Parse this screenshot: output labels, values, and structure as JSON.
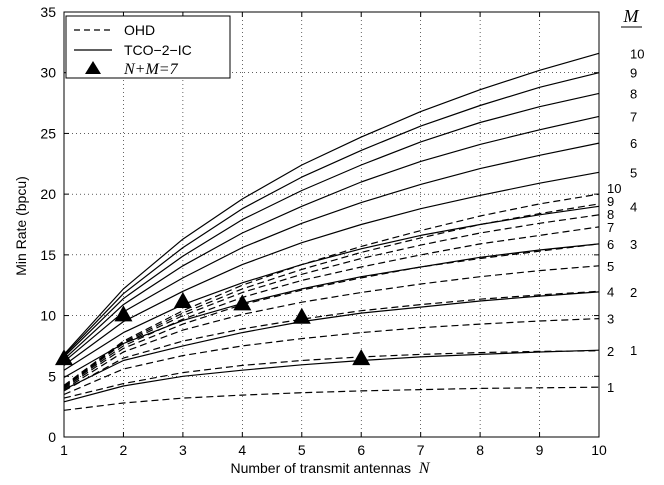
{
  "chart_data": {
    "type": "line",
    "xlabel": "Number of transmit antennas",
    "xlabel_var": "N",
    "ylabel": "Min Rate (bpcu)",
    "xlim": [
      1,
      10
    ],
    "ylim": [
      0,
      35
    ],
    "xticks": [
      1,
      2,
      3,
      4,
      5,
      6,
      7,
      8,
      9,
      10
    ],
    "yticks": [
      0,
      5,
      10,
      15,
      20,
      25,
      30,
      35
    ],
    "grid": true,
    "legend_position": "top-left",
    "legend": [
      {
        "label": "OHD",
        "style": "dashed"
      },
      {
        "label": "TCO−2−IC",
        "style": "solid"
      },
      {
        "label": "N+M=7",
        "style": "triangle-marker"
      }
    ],
    "right_axis_header": "M",
    "x": [
      1,
      2,
      3,
      4,
      5,
      6,
      7,
      8,
      9,
      10
    ],
    "series": [
      {
        "name": "OHD M=1",
        "style": "dashed",
        "m_label": "1",
        "values": [
          2.2,
          2.8,
          3.2,
          3.45,
          3.65,
          3.8,
          3.9,
          4.0,
          4.05,
          4.1
        ]
      },
      {
        "name": "OHD M=2",
        "style": "dashed",
        "m_label": "2",
        "values": [
          3.2,
          4.4,
          5.3,
          5.9,
          6.3,
          6.6,
          6.8,
          6.95,
          7.05,
          7.1
        ]
      },
      {
        "name": "OHD M=3",
        "style": "dashed",
        "m_label": "3",
        "values": [
          3.5,
          5.6,
          6.7,
          7.5,
          8.1,
          8.6,
          9.0,
          9.3,
          9.55,
          9.75
        ]
      },
      {
        "name": "OHD M=4",
        "style": "dashed",
        "m_label": "4",
        "values": [
          3.8,
          6.5,
          7.9,
          8.9,
          9.7,
          10.4,
          10.9,
          11.35,
          11.7,
          12.0
        ]
      },
      {
        "name": "OHD M=5",
        "style": "dashed",
        "m_label": "5",
        "values": [
          3.9,
          7.0,
          8.8,
          10.1,
          11.1,
          11.9,
          12.6,
          13.2,
          13.7,
          14.1
        ]
      },
      {
        "name": "OHD M=6",
        "style": "dashed",
        "m_label": "6",
        "values": [
          4.0,
          7.3,
          9.3,
          10.9,
          12.1,
          13.1,
          14.0,
          14.7,
          15.3,
          15.9
        ]
      },
      {
        "name": "OHD M=7",
        "style": "dashed",
        "m_label": "7",
        "values": [
          4.1,
          7.5,
          9.7,
          11.5,
          12.9,
          14.0,
          15.0,
          15.9,
          16.6,
          17.3
        ]
      },
      {
        "name": "OHD M=8",
        "style": "dashed",
        "m_label": "8",
        "values": [
          4.15,
          7.7,
          10.0,
          11.9,
          13.4,
          14.7,
          15.8,
          16.8,
          17.6,
          18.3
        ]
      },
      {
        "name": "OHD M=9",
        "style": "dashed",
        "m_label": "9",
        "values": [
          4.2,
          7.8,
          10.2,
          12.2,
          13.8,
          15.2,
          16.4,
          17.5,
          18.4,
          19.2
        ]
      },
      {
        "name": "OHD M=10",
        "style": "dashed",
        "m_label": "10",
        "values": [
          4.25,
          7.9,
          10.4,
          12.5,
          14.2,
          15.7,
          17.0,
          18.2,
          19.2,
          20.0
        ]
      },
      {
        "name": "TCO-2-IC M=1",
        "style": "solid",
        "m_label": "1",
        "values": [
          2.9,
          4.2,
          5.0,
          5.5,
          5.95,
          6.3,
          6.6,
          6.8,
          7.0,
          7.15
        ]
      },
      {
        "name": "TCO-2-IC M=2",
        "style": "solid",
        "m_label": "2",
        "values": [
          3.9,
          6.3,
          7.5,
          8.6,
          9.5,
          10.2,
          10.7,
          11.2,
          11.6,
          11.95
        ]
      },
      {
        "name": "TCO-2-IC M=3",
        "style": "solid",
        "m_label": "3",
        "values": [
          4.9,
          7.7,
          9.6,
          11.0,
          12.2,
          13.2,
          14.0,
          14.8,
          15.4,
          15.9
        ]
      },
      {
        "name": "TCO-2-IC M=4",
        "style": "solid",
        "m_label": "4",
        "values": [
          5.5,
          8.6,
          10.9,
          12.7,
          14.2,
          15.5,
          16.6,
          17.5,
          18.3,
          19.0
        ]
      },
      {
        "name": "TCO-2-IC M=5",
        "style": "solid",
        "m_label": "5",
        "values": [
          5.9,
          9.5,
          12.0,
          14.2,
          16.0,
          17.5,
          18.8,
          19.9,
          20.9,
          21.8
        ]
      },
      {
        "name": "TCO-2-IC M=6",
        "style": "solid",
        "m_label": "6",
        "values": [
          6.2,
          10.3,
          13.1,
          15.6,
          17.6,
          19.3,
          20.8,
          22.1,
          23.2,
          24.2
        ]
      },
      {
        "name": "TCO-2-IC M=7",
        "style": "solid",
        "m_label": "7",
        "values": [
          6.4,
          10.9,
          14.1,
          16.8,
          19.0,
          21.0,
          22.7,
          24.1,
          25.3,
          26.4
        ]
      },
      {
        "name": "TCO-2-IC M=8",
        "style": "solid",
        "m_label": "8",
        "values": [
          6.6,
          11.4,
          14.9,
          17.9,
          20.3,
          22.4,
          24.3,
          25.9,
          27.2,
          28.3
        ]
      },
      {
        "name": "TCO-2-IC M=9",
        "style": "solid",
        "m_label": "9",
        "values": [
          6.7,
          11.8,
          15.6,
          18.8,
          21.4,
          23.6,
          25.6,
          27.3,
          28.8,
          30.0
        ]
      },
      {
        "name": "TCO-2-IC M=10",
        "style": "solid",
        "m_label": "10",
        "values": [
          6.8,
          12.2,
          16.3,
          19.6,
          22.4,
          24.7,
          26.8,
          28.6,
          30.2,
          31.6
        ]
      }
    ],
    "markers": {
      "label": "N+M=7",
      "x": [
        1,
        2,
        3,
        4,
        5,
        6
      ],
      "y": [
        6.5,
        10.1,
        11.2,
        11.0,
        9.9,
        6.5
      ]
    },
    "m_labels_ohd": [
      "1",
      "2",
      "3",
      "4",
      "5",
      "6",
      "7",
      "8",
      "9",
      "10"
    ],
    "m_labels_tco": [
      "1",
      "2",
      "3",
      "4",
      "5",
      "6",
      "7",
      "8",
      "9",
      "10"
    ]
  }
}
